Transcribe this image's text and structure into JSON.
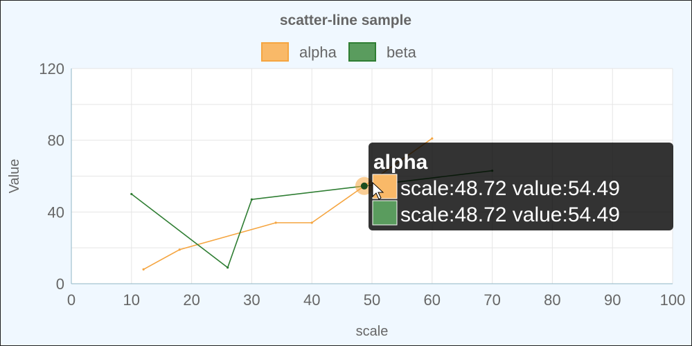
{
  "chart_data": {
    "type": "line",
    "title": "scatter-line sample",
    "xlabel": "scale",
    "ylabel": "Value",
    "xlim": [
      0,
      100
    ],
    "ylim": [
      0,
      120
    ],
    "xticks": [
      0,
      10,
      20,
      30,
      40,
      50,
      60,
      70,
      80,
      90,
      100
    ],
    "yticks": [
      0,
      40,
      80,
      120
    ],
    "grid": true,
    "legend_position": "top-center",
    "series": [
      {
        "name": "alpha",
        "color": "#f5a540",
        "fill": "#f9b968",
        "points": [
          {
            "x": 12,
            "y": 8
          },
          {
            "x": 18,
            "y": 19
          },
          {
            "x": 34,
            "y": 34
          },
          {
            "x": 40,
            "y": 34
          },
          {
            "x": 48.72,
            "y": 54.49
          },
          {
            "x": 60,
            "y": 81
          }
        ]
      },
      {
        "name": "beta",
        "color": "#2e7d32",
        "fill": "#5a9c5e",
        "points": [
          {
            "x": 10,
            "y": 50
          },
          {
            "x": 26,
            "y": 9
          },
          {
            "x": 30,
            "y": 47
          },
          {
            "x": 48.72,
            "y": 54.49
          },
          {
            "x": 70,
            "y": 63
          }
        ]
      }
    ],
    "tooltip": {
      "title": "alpha",
      "lines": [
        {
          "series": "alpha",
          "text": "scale:48.72  value:54.49"
        },
        {
          "series": "beta",
          "text": "scale:48.72  value:54.49"
        }
      ]
    }
  }
}
